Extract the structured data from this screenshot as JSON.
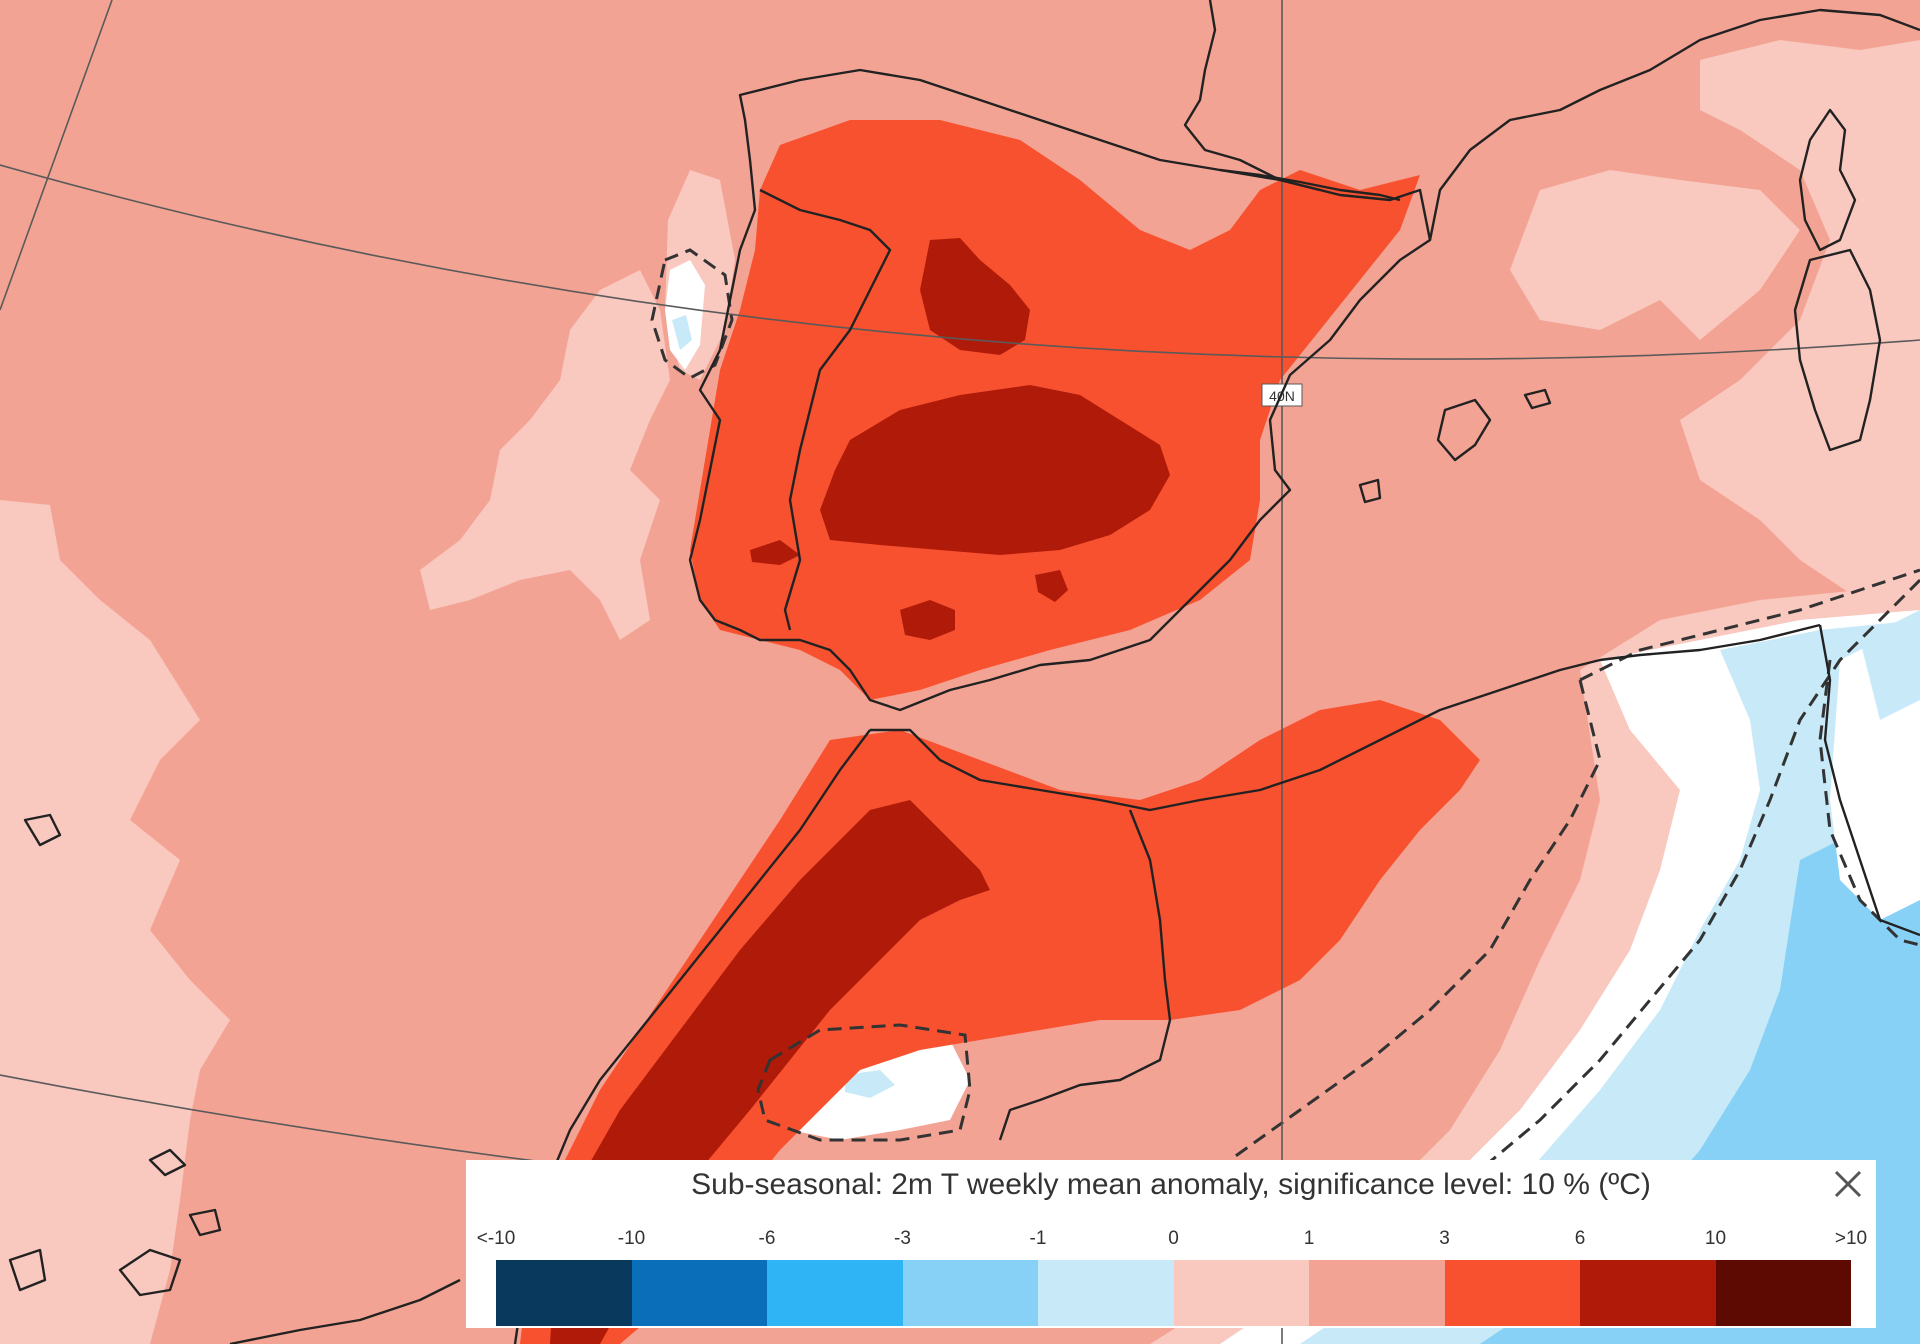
{
  "legend": {
    "title": "Sub-seasonal: 2m T weekly mean anomaly, significance level: 10 % (ºC)",
    "close_icon": "close-icon",
    "tick_labels": [
      "<-10",
      "-10",
      "-6",
      "-3",
      "-1",
      "0",
      "1",
      "3",
      "6",
      "10",
      ">10"
    ],
    "colors": [
      "#093a5e",
      "#0a6fb8",
      "#2fb4f5",
      "#86d1f5",
      "#c7e9f8",
      "#f9c8bf",
      "#f3a393",
      "#f7512f",
      "#b01a08",
      "#5d0a02"
    ]
  },
  "map": {
    "graticule_label": "40N",
    "anomaly_colors": {
      "light_pink": "#f9c8bf",
      "salmon": "#f3a393",
      "orange_red": "#f7512f",
      "dark_red": "#b01a08",
      "white": "#ffffff",
      "pale_blue": "#c7e9f8",
      "light_blue": "#86d1f5"
    }
  }
}
